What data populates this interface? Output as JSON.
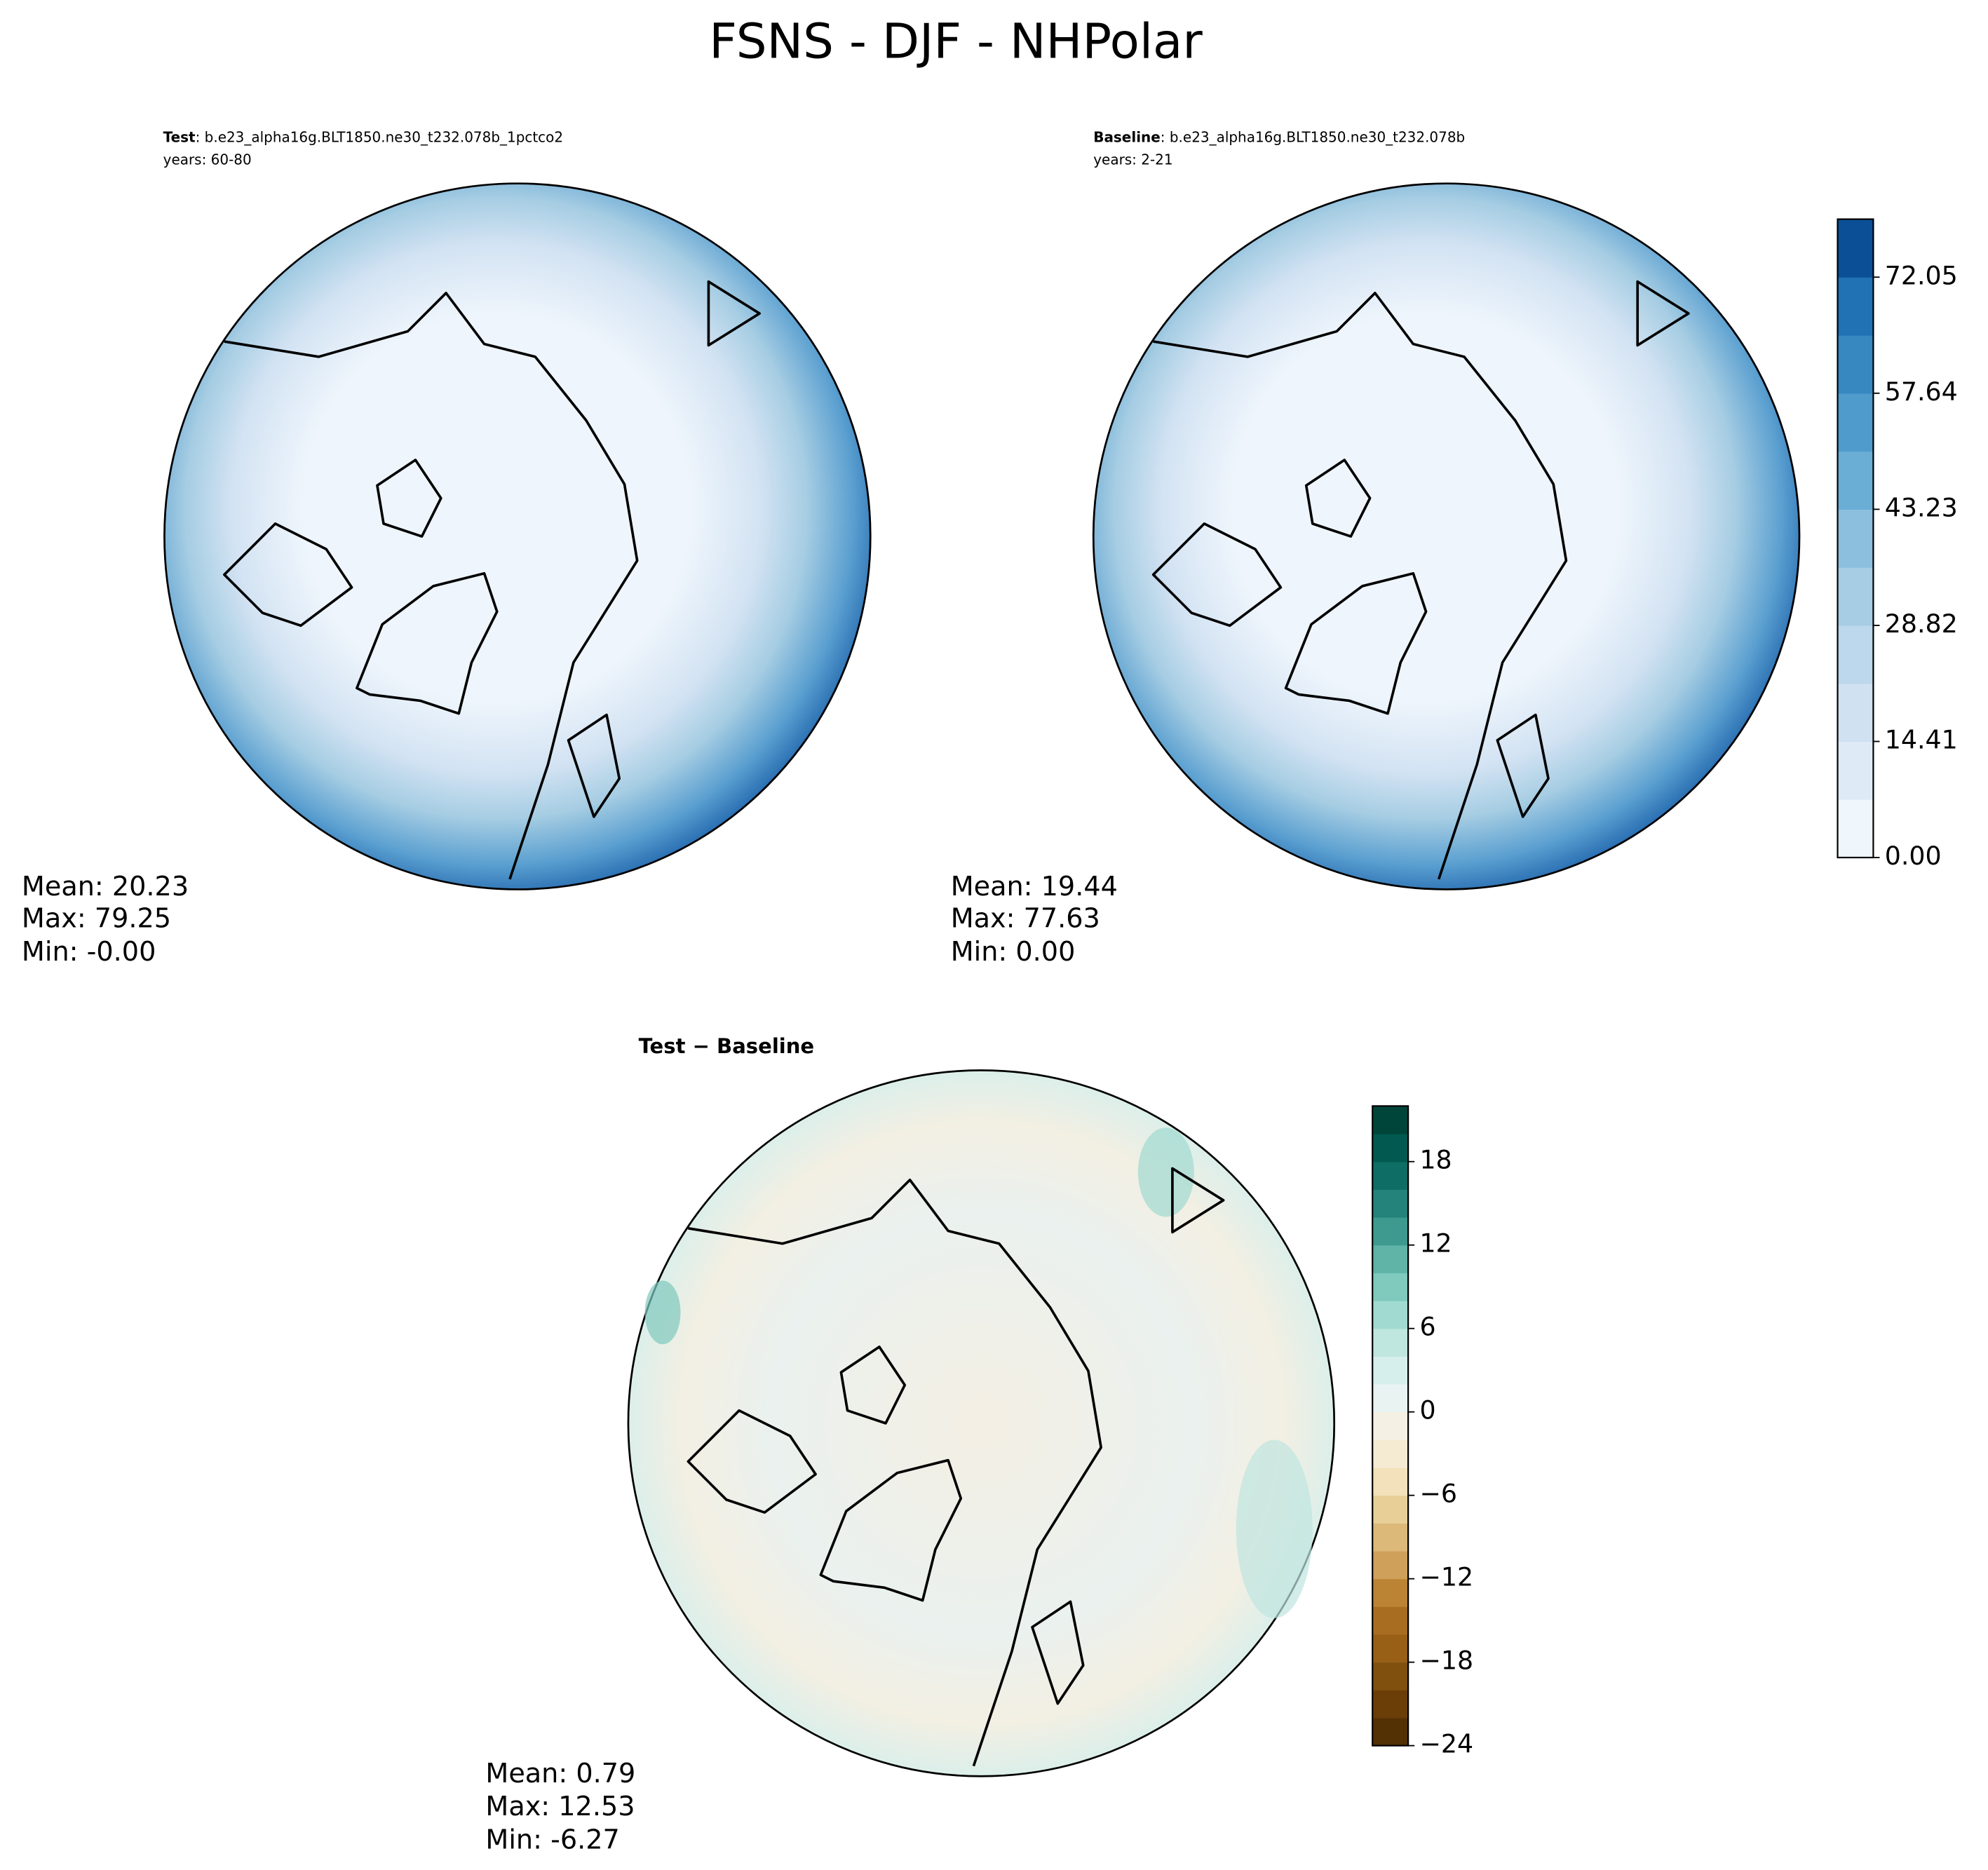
{
  "title": "FSNS - DJF - NHPolar",
  "chart_data": [
    {
      "type": "map",
      "label": "Test",
      "case": ": b.e23_alpha16g.BLT1850.ne30_t232.078b_1pctco2",
      "years": "years: 60-80",
      "stats": [
        "Mean: 20.23",
        "Max: 79.25",
        "Min: -0.00"
      ]
    },
    {
      "type": "map",
      "label": "Baseline",
      "case": ": b.e23_alpha16g.BLT1850.ne30_t232.078b",
      "years": "years: 2-21",
      "stats": [
        "Mean: 19.44",
        "Max: 77.63",
        "Min:  0.00"
      ],
      "colorbar": {
        "ylim": [
          0,
          79.25
        ],
        "yticks": [
          {
            "value": 0,
            "label": "0.00"
          },
          14.41,
          28.82,
          43.23,
          57.64,
          72.05
        ],
        "colors": [
          "#eff6fc",
          "#deebf7",
          "#d0e1f2",
          "#bdd7ec",
          "#a6cde3",
          "#8bbfdd",
          "#6aaed6",
          "#4f9bcb",
          "#3787c0",
          "#2171b5",
          "#0b4f96"
        ]
      }
    },
    {
      "type": "map",
      "title": "Test − Baseline",
      "stats": [
        "Mean:  0.79",
        "Max: 12.53",
        "Min: -6.27"
      ],
      "colorbar": {
        "ylim": [
          -24,
          22
        ],
        "yticks": [
          {
            "value": -24,
            "label": "−24"
          },
          {
            "value": -18,
            "label": "−18"
          },
          {
            "value": -12,
            "label": "−12"
          },
          {
            "value": -6,
            "label": "−6"
          },
          0,
          6,
          12,
          18
        ],
        "colors": [
          "#543005",
          "#6b3e08",
          "#80500f",
          "#985f17",
          "#a96d21",
          "#bb8434",
          "#cfa05a",
          "#dcb879",
          "#e8cf98",
          "#f2e1ba",
          "#f5ebd3",
          "#f5f0e4",
          "#e9f3f2",
          "#d7efec",
          "#bfe6df",
          "#a0dad0",
          "#7fc9bd",
          "#5fb3a7",
          "#3e9a8f",
          "#24837a",
          "#0e6d64",
          "#01594f",
          "#00453a"
        ]
      }
    }
  ]
}
